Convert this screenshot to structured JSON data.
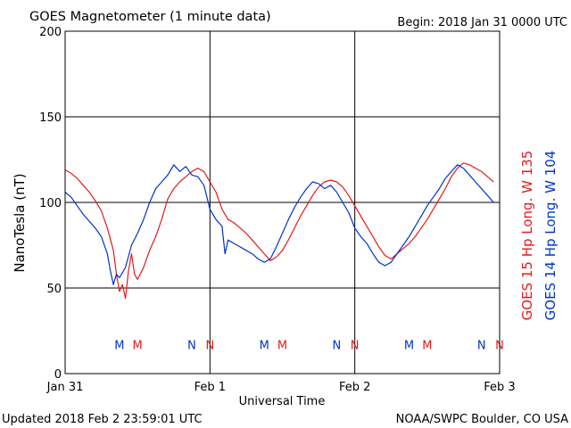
{
  "header": {
    "title": "GOES Magnetometer (1 minute data)",
    "begin": "Begin:  2018 Jan 31 0000 UTC"
  },
  "footer": {
    "updated": "Updated 2018 Feb  2 23:59:01 UTC",
    "credit": "NOAA/SWPC Boulder, CO USA"
  },
  "colors": {
    "goes15": "#e41a1c",
    "goes14": "#0033cc",
    "grid": "#000000"
  },
  "chart_data": {
    "type": "line",
    "title": "GOES Magnetometer (1 minute data)",
    "xlabel": "Universal Time",
    "ylabel": "NanoTesla (nT)",
    "xlim": [
      "2018-01-31T00:00",
      "2018-02-03T00:00"
    ],
    "x_ticks": [
      "Jan 31",
      "Feb 1",
      "Feb 2",
      "Feb 3"
    ],
    "ylim": [
      0,
      200
    ],
    "y_ticks": [
      "0",
      "50",
      "100",
      "150",
      "200"
    ],
    "grid": true,
    "legend_position": "right",
    "series": [
      {
        "name": "GOES 15 Hp  Long. W 135",
        "color": "#e41a1c",
        "points": [
          [
            "2018-01-31T00:00",
            119
          ],
          [
            "2018-01-31T01:00",
            117
          ],
          [
            "2018-01-31T02:00",
            114
          ],
          [
            "2018-01-31T03:00",
            110
          ],
          [
            "2018-01-31T04:00",
            106
          ],
          [
            "2018-01-31T05:00",
            101
          ],
          [
            "2018-01-31T06:00",
            95
          ],
          [
            "2018-01-31T07:00",
            85
          ],
          [
            "2018-01-31T08:00",
            72
          ],
          [
            "2018-01-31T08:30",
            58
          ],
          [
            "2018-01-31T09:00",
            48
          ],
          [
            "2018-01-31T09:30",
            52
          ],
          [
            "2018-01-31T10:00",
            44
          ],
          [
            "2018-01-31T10:30",
            60
          ],
          [
            "2018-01-31T11:00",
            70
          ],
          [
            "2018-01-31T11:30",
            58
          ],
          [
            "2018-01-31T12:00",
            55
          ],
          [
            "2018-01-31T13:00",
            62
          ],
          [
            "2018-01-31T14:00",
            72
          ],
          [
            "2018-01-31T15:00",
            80
          ],
          [
            "2018-01-31T16:00",
            90
          ],
          [
            "2018-01-31T17:00",
            102
          ],
          [
            "2018-01-31T18:00",
            108
          ],
          [
            "2018-01-31T19:00",
            112
          ],
          [
            "2018-01-31T20:00",
            115
          ],
          [
            "2018-01-31T21:00",
            118
          ],
          [
            "2018-01-31T22:00",
            120
          ],
          [
            "2018-01-31T23:00",
            118
          ],
          [
            "2018-02-01T00:00",
            112
          ],
          [
            "2018-02-01T01:00",
            106
          ],
          [
            "2018-02-01T02:00",
            96
          ],
          [
            "2018-02-01T03:00",
            90
          ],
          [
            "2018-02-01T04:00",
            88
          ],
          [
            "2018-02-01T05:00",
            85
          ],
          [
            "2018-02-01T06:00",
            82
          ],
          [
            "2018-02-01T07:00",
            78
          ],
          [
            "2018-02-01T08:00",
            74
          ],
          [
            "2018-02-01T09:00",
            70
          ],
          [
            "2018-02-01T10:00",
            66
          ],
          [
            "2018-02-01T11:00",
            68
          ],
          [
            "2018-02-01T12:00",
            72
          ],
          [
            "2018-02-01T13:00",
            78
          ],
          [
            "2018-02-01T14:00",
            85
          ],
          [
            "2018-02-01T15:00",
            92
          ],
          [
            "2018-02-01T16:00",
            98
          ],
          [
            "2018-02-01T17:00",
            104
          ],
          [
            "2018-02-01T18:00",
            109
          ],
          [
            "2018-02-01T19:00",
            112
          ],
          [
            "2018-02-01T20:00",
            113
          ],
          [
            "2018-02-01T21:00",
            112
          ],
          [
            "2018-02-01T22:00",
            109
          ],
          [
            "2018-02-01T23:00",
            104
          ],
          [
            "2018-02-02T00:00",
            98
          ],
          [
            "2018-02-02T01:00",
            92
          ],
          [
            "2018-02-02T02:00",
            86
          ],
          [
            "2018-02-02T03:00",
            80
          ],
          [
            "2018-02-02T04:00",
            74
          ],
          [
            "2018-02-02T05:00",
            69
          ],
          [
            "2018-02-02T06:00",
            67
          ],
          [
            "2018-02-02T07:00",
            70
          ],
          [
            "2018-02-02T08:00",
            73
          ],
          [
            "2018-02-02T09:00",
            76
          ],
          [
            "2018-02-02T10:00",
            80
          ],
          [
            "2018-02-02T11:00",
            85
          ],
          [
            "2018-02-02T12:00",
            90
          ],
          [
            "2018-02-02T13:00",
            96
          ],
          [
            "2018-02-02T14:00",
            102
          ],
          [
            "2018-02-02T15:00",
            108
          ],
          [
            "2018-02-02T16:00",
            115
          ],
          [
            "2018-02-02T17:00",
            120
          ],
          [
            "2018-02-02T18:00",
            123
          ],
          [
            "2018-02-02T19:00",
            122
          ],
          [
            "2018-02-02T20:00",
            120
          ],
          [
            "2018-02-02T21:00",
            118
          ],
          [
            "2018-02-02T22:00",
            115
          ],
          [
            "2018-02-02T23:00",
            112
          ]
        ]
      },
      {
        "name": "GOES 14 Hp  Long. W 104",
        "color": "#0033cc",
        "points": [
          [
            "2018-01-31T00:00",
            106
          ],
          [
            "2018-01-31T01:00",
            103
          ],
          [
            "2018-01-31T02:00",
            98
          ],
          [
            "2018-01-31T03:00",
            93
          ],
          [
            "2018-01-31T04:00",
            89
          ],
          [
            "2018-01-31T05:00",
            85
          ],
          [
            "2018-01-31T06:00",
            80
          ],
          [
            "2018-01-31T07:00",
            70
          ],
          [
            "2018-01-31T07:30",
            60
          ],
          [
            "2018-01-31T08:00",
            52
          ],
          [
            "2018-01-31T08:30",
            58
          ],
          [
            "2018-01-31T09:00",
            56
          ],
          [
            "2018-01-31T10:00",
            62
          ],
          [
            "2018-01-31T11:00",
            75
          ],
          [
            "2018-01-31T12:00",
            82
          ],
          [
            "2018-01-31T13:00",
            90
          ],
          [
            "2018-01-31T14:00",
            100
          ],
          [
            "2018-01-31T15:00",
            108
          ],
          [
            "2018-01-31T16:00",
            112
          ],
          [
            "2018-01-31T17:00",
            116
          ],
          [
            "2018-01-31T18:00",
            122
          ],
          [
            "2018-01-31T19:00",
            118
          ],
          [
            "2018-01-31T20:00",
            121
          ],
          [
            "2018-01-31T21:00",
            116
          ],
          [
            "2018-01-31T22:00",
            115
          ],
          [
            "2018-01-31T23:00",
            110
          ],
          [
            "2018-02-01T00:00",
            96
          ],
          [
            "2018-02-01T01:00",
            90
          ],
          [
            "2018-02-01T02:00",
            86
          ],
          [
            "2018-02-01T02:30",
            70
          ],
          [
            "2018-02-01T03:00",
            78
          ],
          [
            "2018-02-01T04:00",
            76
          ],
          [
            "2018-02-01T05:00",
            74
          ],
          [
            "2018-02-01T06:00",
            72
          ],
          [
            "2018-02-01T07:00",
            70
          ],
          [
            "2018-02-01T08:00",
            67
          ],
          [
            "2018-02-01T09:00",
            65
          ],
          [
            "2018-02-01T10:00",
            67
          ],
          [
            "2018-02-01T11:00",
            74
          ],
          [
            "2018-02-01T12:00",
            82
          ],
          [
            "2018-02-01T13:00",
            90
          ],
          [
            "2018-02-01T14:00",
            97
          ],
          [
            "2018-02-01T15:00",
            103
          ],
          [
            "2018-02-01T16:00",
            108
          ],
          [
            "2018-02-01T17:00",
            112
          ],
          [
            "2018-02-01T18:00",
            111
          ],
          [
            "2018-02-01T19:00",
            108
          ],
          [
            "2018-02-01T20:00",
            110
          ],
          [
            "2018-02-01T21:00",
            106
          ],
          [
            "2018-02-01T22:00",
            100
          ],
          [
            "2018-02-01T23:00",
            94
          ],
          [
            "2018-02-02T00:00",
            85
          ],
          [
            "2018-02-02T01:00",
            80
          ],
          [
            "2018-02-02T02:00",
            76
          ],
          [
            "2018-02-02T03:00",
            70
          ],
          [
            "2018-02-02T04:00",
            65
          ],
          [
            "2018-02-02T05:00",
            63
          ],
          [
            "2018-02-02T06:00",
            65
          ],
          [
            "2018-02-02T07:00",
            70
          ],
          [
            "2018-02-02T08:00",
            75
          ],
          [
            "2018-02-02T09:00",
            80
          ],
          [
            "2018-02-02T10:00",
            86
          ],
          [
            "2018-02-02T11:00",
            92
          ],
          [
            "2018-02-02T12:00",
            98
          ],
          [
            "2018-02-02T13:00",
            103
          ],
          [
            "2018-02-02T14:00",
            108
          ],
          [
            "2018-02-02T15:00",
            114
          ],
          [
            "2018-02-02T16:00",
            118
          ],
          [
            "2018-02-02T17:00",
            122
          ],
          [
            "2018-02-02T18:00",
            120
          ],
          [
            "2018-02-02T19:00",
            116
          ],
          [
            "2018-02-02T20:00",
            112
          ],
          [
            "2018-02-02T21:00",
            108
          ],
          [
            "2018-02-02T22:00",
            104
          ],
          [
            "2018-02-02T23:00",
            100
          ]
        ]
      }
    ],
    "annotations": [
      {
        "text": "M",
        "color": "#0033cc",
        "x": "2018-01-31T09:00",
        "y": 17
      },
      {
        "text": "M",
        "color": "#e41a1c",
        "x": "2018-01-31T12:00",
        "y": 17
      },
      {
        "text": "N",
        "color": "#0033cc",
        "x": "2018-01-31T21:00",
        "y": 17
      },
      {
        "text": "N",
        "color": "#e41a1c",
        "x": "2018-02-01T00:00",
        "y": 17
      },
      {
        "text": "M",
        "color": "#0033cc",
        "x": "2018-02-01T09:00",
        "y": 17
      },
      {
        "text": "M",
        "color": "#e41a1c",
        "x": "2018-02-01T12:00",
        "y": 17
      },
      {
        "text": "N",
        "color": "#0033cc",
        "x": "2018-02-01T21:00",
        "y": 17
      },
      {
        "text": "N",
        "color": "#e41a1c",
        "x": "2018-02-02T00:00",
        "y": 17
      },
      {
        "text": "M",
        "color": "#0033cc",
        "x": "2018-02-02T09:00",
        "y": 17
      },
      {
        "text": "M",
        "color": "#e41a1c",
        "x": "2018-02-02T12:00",
        "y": 17
      },
      {
        "text": "N",
        "color": "#0033cc",
        "x": "2018-02-02T21:00",
        "y": 17
      },
      {
        "text": "N",
        "color": "#e41a1c",
        "x": "2018-02-03T00:00",
        "y": 17
      }
    ]
  }
}
